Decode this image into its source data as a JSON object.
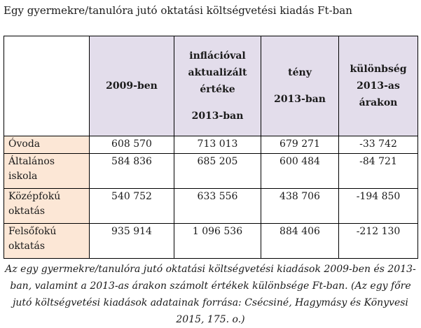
{
  "title": "Egy gyermekre/tanulóra jutó oktatási költségvetési kiadás Ft-ban",
  "table": {
    "headers": {
      "col1": "2009-ben",
      "col2_line1": "inflációval",
      "col2_line2": "aktualizált",
      "col2_line3": "értéke",
      "col2_line4": "2013-ban",
      "col3_line1": "tény",
      "col3_line2": "2013-ban",
      "col4_line1": "különbség",
      "col4_line2": "2013-as",
      "col4_line3": "árakon"
    },
    "rows": [
      {
        "label_line1": "Óvoda",
        "label_line2": "",
        "v2009": "608 570",
        "inflated": "713 013",
        "actual": "679 271",
        "diff": "-33 742"
      },
      {
        "label_line1": "Általános",
        "label_line2": "iskola",
        "v2009": "584 836",
        "inflated": "685 205",
        "actual": "600 484",
        "diff": "-84 721"
      },
      {
        "label_line1": "Középfokú",
        "label_line2": "oktatás",
        "v2009": "540 752",
        "inflated": "633 556",
        "actual": "438 706",
        "diff": "-194 850"
      },
      {
        "label_line1": "Felsőfokú",
        "label_line2": "oktatás",
        "v2009": "935 914",
        "inflated": "1 096 536",
        "actual": "884 406",
        "diff": "-212 130"
      }
    ]
  },
  "caption": {
    "line1": "Az egy gyermekre/tanulóra jutó oktatási költségvetési kiadások 2009-ben és 2013-",
    "line2": "ban, valamint a 2013-as árakon számolt értékek különbsége Ft-ban. (Az egy főre",
    "line3": "jutó költségvetési kiadások adatainak forrása: Csécsiné, Hagymásy és Könyvesi",
    "line4": "2015, 175. o.)"
  }
}
